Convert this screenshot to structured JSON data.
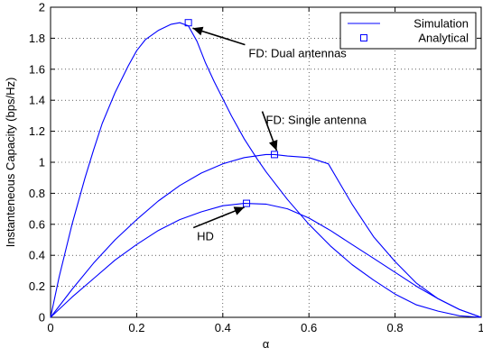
{
  "chart_data": {
    "type": "line",
    "title": "",
    "xlabel": "α",
    "ylabel": "Instanteneous Capacity (bps/Hz)",
    "xlim": [
      0,
      1
    ],
    "ylim": [
      0,
      2
    ],
    "x_ticks": [
      0,
      0.2,
      0.4,
      0.6,
      0.8,
      1
    ],
    "x_tick_labels": [
      "0",
      "0.2",
      "0.4",
      "0.6",
      "0.8",
      "1"
    ],
    "y_ticks": [
      0,
      0.2,
      0.4,
      0.6,
      0.8,
      1,
      1.2,
      1.4,
      1.6,
      1.8,
      2
    ],
    "y_tick_labels": [
      "0",
      "0.2",
      "0.4",
      "0.6",
      "0.8",
      "1",
      "1.2",
      "1.4",
      "1.6",
      "1.8",
      "2"
    ],
    "grid": true,
    "grid_style": "dotted",
    "line_color": "#0000ff",
    "legend": {
      "placement": "top-right",
      "entries": [
        {
          "label": "Simulation",
          "marker": "line"
        },
        {
          "label": "Analytical",
          "marker": "square"
        }
      ]
    },
    "series": [
      {
        "x": [
          0,
          0.02,
          0.05,
          0.08,
          0.1,
          0.12,
          0.15,
          0.18,
          0.2,
          0.22,
          0.25,
          0.28,
          0.3,
          0.32,
          0.34,
          0.36,
          0.38,
          0.4,
          0.42,
          0.45,
          0.48,
          0.5,
          0.55,
          0.6,
          0.65,
          0.7,
          0.75,
          0.8,
          0.85,
          0.9,
          0.95,
          1.0
        ],
        "values": [
          0,
          0.26,
          0.6,
          0.9,
          1.08,
          1.25,
          1.45,
          1.62,
          1.72,
          1.79,
          1.85,
          1.89,
          1.9,
          1.88,
          1.78,
          1.64,
          1.52,
          1.41,
          1.3,
          1.15,
          1.02,
          0.94,
          0.76,
          0.6,
          0.46,
          0.34,
          0.24,
          0.15,
          0.08,
          0.04,
          0.01,
          0
        ]
      },
      {
        "x": [
          0,
          0.05,
          0.1,
          0.15,
          0.2,
          0.25,
          0.3,
          0.35,
          0.4,
          0.45,
          0.5,
          0.52,
          0.55,
          0.6,
          0.645,
          0.7,
          0.75,
          0.8,
          0.85,
          0.9,
          0.95,
          1.0
        ],
        "values": [
          0,
          0.18,
          0.35,
          0.5,
          0.63,
          0.75,
          0.85,
          0.93,
          0.99,
          1.03,
          1.05,
          1.05,
          1.04,
          1.03,
          0.99,
          0.73,
          0.52,
          0.36,
          0.22,
          0.12,
          0.05,
          0
        ]
      },
      {
        "x": [
          0,
          0.05,
          0.1,
          0.15,
          0.2,
          0.25,
          0.3,
          0.35,
          0.4,
          0.45,
          0.5,
          0.55,
          0.6,
          0.65,
          0.7,
          0.75,
          0.8,
          0.85,
          0.9,
          0.95,
          1.0
        ],
        "values": [
          0,
          0.13,
          0.25,
          0.37,
          0.47,
          0.56,
          0.63,
          0.68,
          0.72,
          0.735,
          0.73,
          0.7,
          0.64,
          0.56,
          0.47,
          0.38,
          0.29,
          0.2,
          0.12,
          0.05,
          0
        ]
      }
    ],
    "analytical_points": [
      {
        "x": 0.32,
        "y": 1.9
      },
      {
        "x": 0.52,
        "y": 1.05
      },
      {
        "x": 0.455,
        "y": 0.735
      }
    ],
    "annotations": [
      {
        "text": "FD: Dual antennas",
        "label_x": 0.46,
        "label_y": 1.7,
        "arrow_to_x": 0.33,
        "arrow_to_y": 1.865
      },
      {
        "text": "FD: Single antenna",
        "label_x": 0.5,
        "label_y": 1.27,
        "arrow_to_x": 0.525,
        "arrow_to_y": 1.075
      },
      {
        "text": "HD",
        "label_x": 0.34,
        "label_y": 0.52,
        "arrow_to_x": 0.45,
        "arrow_to_y": 0.71
      }
    ]
  }
}
